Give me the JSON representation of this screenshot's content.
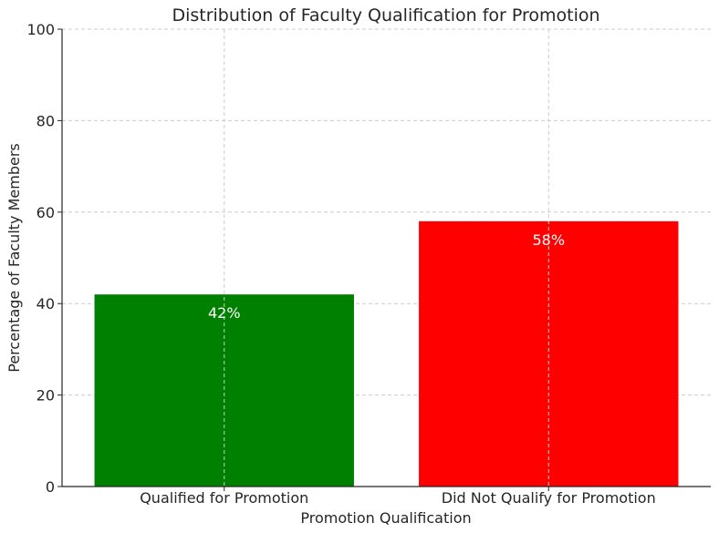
{
  "chart_data": {
    "type": "bar",
    "title": "Distribution of Faculty Qualification for Promotion",
    "xlabel": "Promotion Qualification",
    "ylabel": "Percentage of Faculty Members",
    "categories": [
      "Qualified for Promotion",
      "Did Not Qualify for Promotion"
    ],
    "values": [
      42,
      58
    ],
    "data_labels": [
      "42%",
      "58%"
    ],
    "colors": [
      "#008000",
      "#ff0000"
    ],
    "ylim": [
      0,
      100
    ],
    "yticks": [
      0,
      20,
      40,
      60,
      80,
      100
    ],
    "grid": true,
    "legend": "none"
  }
}
